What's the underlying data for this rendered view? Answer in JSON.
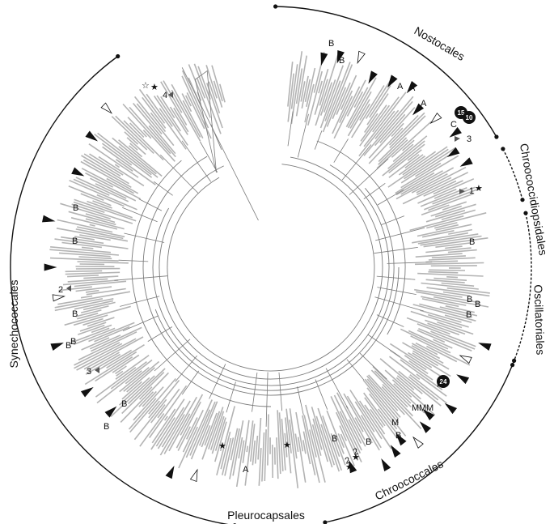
{
  "figure": {
    "clades": [
      {
        "id": "nostocales",
        "label": "Nostocales"
      },
      {
        "id": "chroococcidiopsidales",
        "label": "Chroococcidiopsidales"
      },
      {
        "id": "oscillatoriales",
        "label": "Oscillatoriales"
      },
      {
        "id": "chroococcales",
        "label": "Chroococcales"
      },
      {
        "id": "pleurocapsales",
        "label": "Pleurocapsales"
      },
      {
        "id": "synechococcales",
        "label": "Synechococcales"
      }
    ],
    "marker_letters": {
      "a": "A",
      "b": "B",
      "c": "C",
      "m": "M"
    },
    "numbers": {
      "n1": "1",
      "n2": "2",
      "n3": "3",
      "n4": "4"
    },
    "badges": {
      "b15": "15",
      "b10": "10",
      "b24": "24"
    },
    "colors": {
      "ink": "#111111",
      "leaf": "#9a9a9a",
      "branch": "#7a7a7a",
      "marker": "#111111"
    }
  }
}
